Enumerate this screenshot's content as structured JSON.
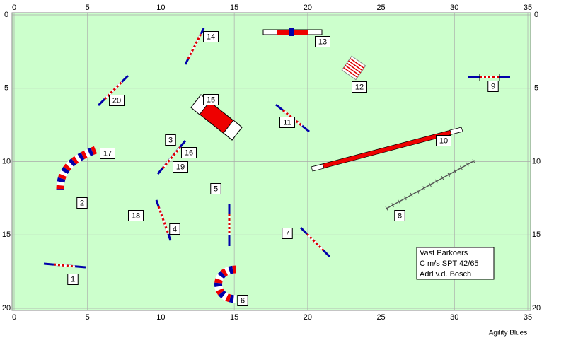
{
  "grid": {
    "xticks": [
      0,
      5,
      10,
      15,
      20,
      25,
      30,
      35
    ],
    "yticks": [
      0,
      5,
      10,
      15,
      20
    ]
  },
  "obstacles": [
    {
      "label": "1"
    },
    {
      "label": "2"
    },
    {
      "label": "3"
    },
    {
      "label": "4"
    },
    {
      "label": "5"
    },
    {
      "label": "6"
    },
    {
      "label": "7"
    },
    {
      "label": "8"
    },
    {
      "label": "9"
    },
    {
      "label": "10"
    },
    {
      "label": "11"
    },
    {
      "label": "12"
    },
    {
      "label": "13"
    },
    {
      "label": "14"
    },
    {
      "label": "15"
    },
    {
      "label": "16"
    },
    {
      "label": "17"
    },
    {
      "label": "18"
    },
    {
      "label": "19"
    },
    {
      "label": "20"
    }
  ],
  "info_box": {
    "lines": [
      "Vast Parkoers",
      "C m/s SPT 42/65",
      "Adri v.d. Bosch"
    ]
  },
  "footer": "Agility Blues"
}
